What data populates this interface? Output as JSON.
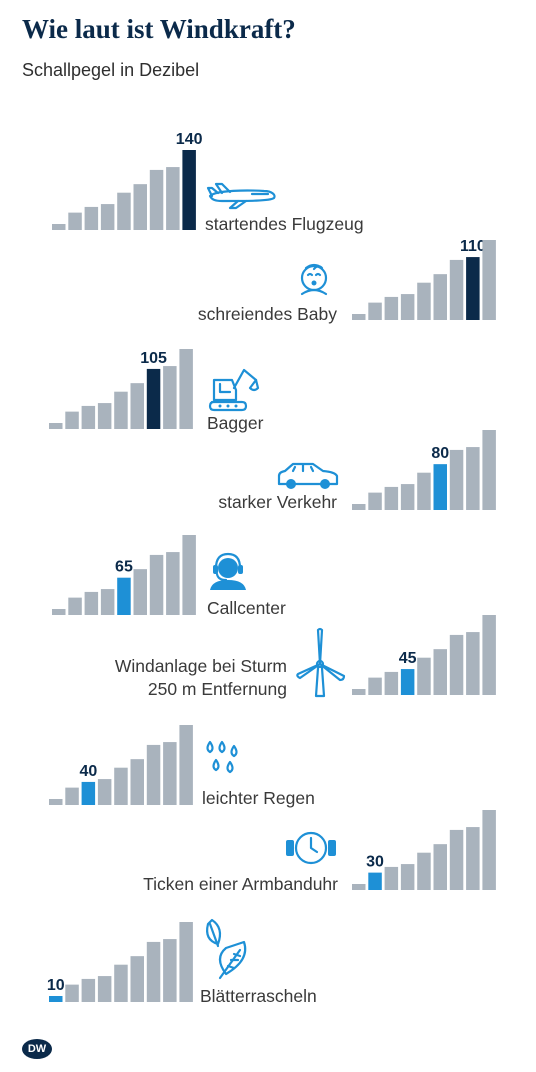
{
  "title": "Wie laut ist Windkraft?",
  "subtitle": "Schallpegel in Dezibel",
  "logo_text": "DW",
  "colors": {
    "bar": "#a9b3bd",
    "highlight_dark": "#0b2a4a",
    "highlight_blue": "#1e90d6",
    "title": "#0b2a4a"
  },
  "chart_data": {
    "type": "bar",
    "title": "Wie laut ist Windkraft?",
    "subtitle": "Schallpegel in Dezibel",
    "ylabel": "Dezibel",
    "categories": [
      "startendes Flugzeug",
      "schreiendes Baby",
      "Bagger",
      "starker Verkehr",
      "Callcenter",
      "Windanlage bei Sturm 250 m Entfernung",
      "leichter Regen",
      "Ticken einer Armbanduhr",
      "Blätterrascheln"
    ],
    "values": [
      140,
      110,
      105,
      80,
      65,
      45,
      40,
      30,
      10
    ],
    "scale_steps": [
      10,
      30,
      40,
      45,
      65,
      80,
      105,
      110,
      140
    ],
    "items": [
      {
        "label": "startendes Flugzeug",
        "value": 140,
        "icon": "airplane-icon",
        "tone": "dark"
      },
      {
        "label": "schreiendes Baby",
        "value": 110,
        "icon": "baby-icon",
        "tone": "dark"
      },
      {
        "label": "Bagger",
        "value": 105,
        "icon": "excavator-icon",
        "tone": "dark"
      },
      {
        "label": "starker Verkehr",
        "value": 80,
        "icon": "car-icon",
        "tone": "blue"
      },
      {
        "label": "Callcenter",
        "value": 65,
        "icon": "headset-icon",
        "tone": "blue"
      },
      {
        "label": "Windanlage bei Sturm 250 m Entfernung",
        "value": 45,
        "icon": "wind-turbine-icon",
        "tone": "blue"
      },
      {
        "label": "leichter Regen",
        "value": 40,
        "icon": "raindrops-icon",
        "tone": "blue"
      },
      {
        "label": "Ticken einer Armbanduhr",
        "value": 30,
        "icon": "wristwatch-icon",
        "tone": "blue"
      },
      {
        "label": "Blätterrascheln",
        "value": 10,
        "icon": "leaves-icon",
        "tone": "blue"
      }
    ]
  }
}
